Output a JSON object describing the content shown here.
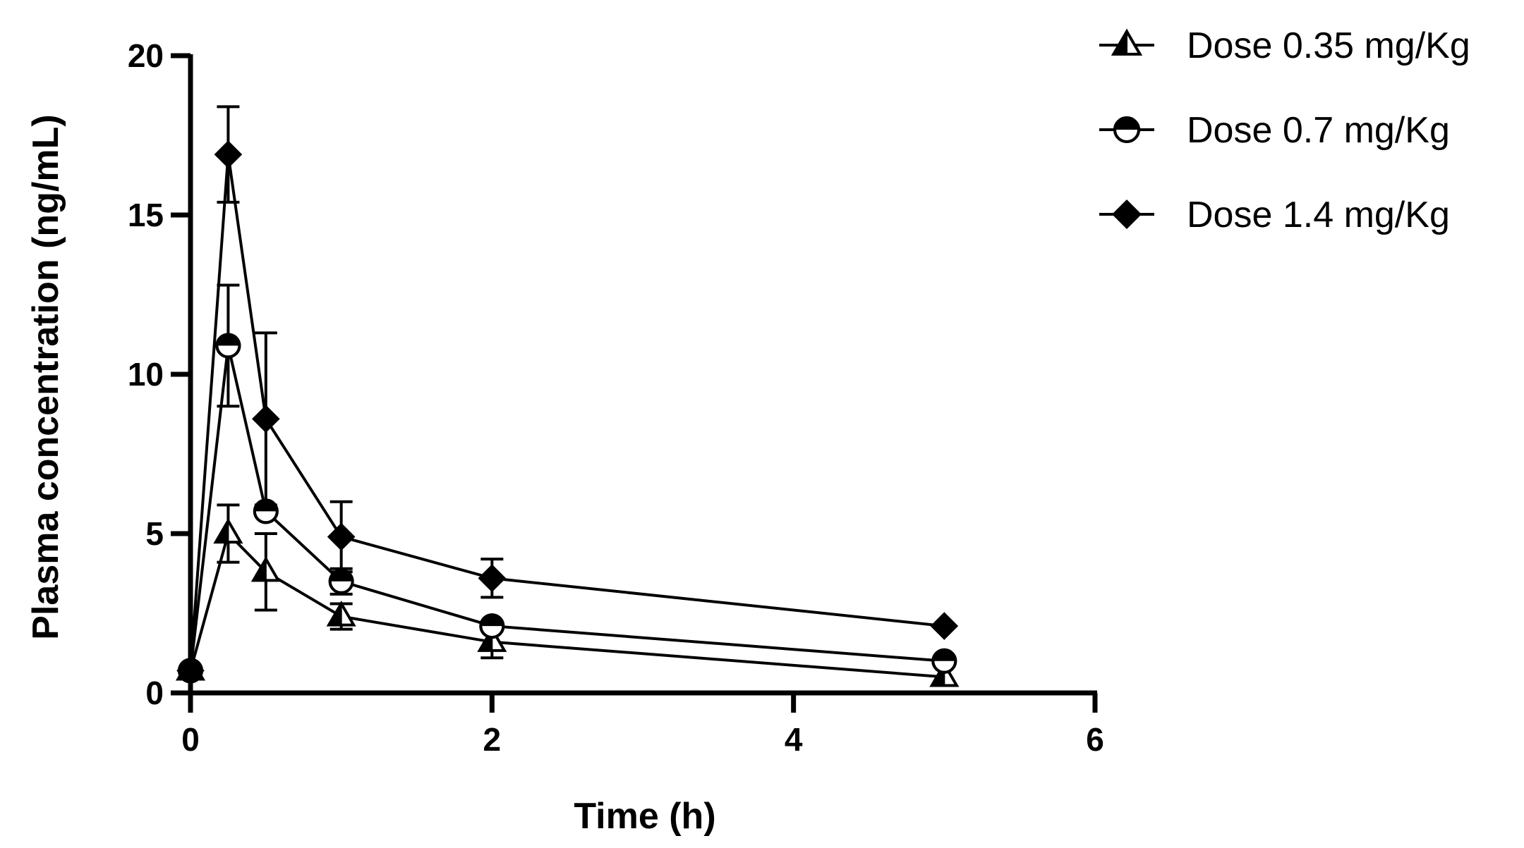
{
  "chart_data": {
    "type": "line",
    "xlabel": "Time (h)",
    "ylabel": "Plasma concentration (ng/mL)",
    "xlim": [
      0,
      6
    ],
    "ylim": [
      0,
      20
    ],
    "xticks": [
      "0",
      "2",
      "4",
      "6"
    ],
    "yticks": [
      "0",
      "5",
      "10",
      "15",
      "20"
    ],
    "grid": false,
    "legend": "top-right",
    "x": [
      0,
      0.25,
      0.5,
      1,
      2,
      5
    ],
    "series": [
      {
        "name": "Dose 0.35 mg/Kg",
        "marker": "triangle-half",
        "values": [
          0.7,
          5.0,
          3.8,
          2.4,
          1.6,
          0.5
        ],
        "errors": [
          0,
          0.9,
          1.2,
          0.4,
          0.5,
          0.0
        ]
      },
      {
        "name": "Dose 0.7 mg/Kg",
        "marker": "circle-half",
        "values": [
          0.7,
          10.9,
          5.7,
          3.5,
          2.1,
          1.0
        ],
        "errors": [
          0,
          1.9,
          0,
          0.4,
          0,
          0
        ]
      },
      {
        "name": "Dose 1.4 mg/Kg",
        "marker": "diamond",
        "values": [
          0.7,
          16.9,
          8.6,
          4.9,
          3.6,
          2.1
        ],
        "errors": [
          0,
          1.5,
          2.7,
          1.1,
          0.6,
          0
        ]
      }
    ],
    "colors": {
      "ink": "#000000",
      "background": "#ffffff"
    }
  }
}
